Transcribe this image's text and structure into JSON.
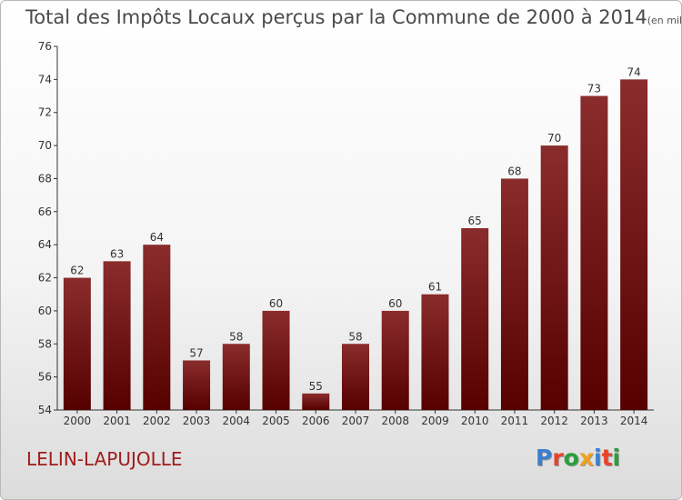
{
  "title": "Total des Impôts Locaux perçus par la Commune de 2000 à 2014",
  "subtitle": "(en milliers d'€)",
  "commune": "LELIN-LAPUJOLLE",
  "logo": {
    "letters": [
      "P",
      "r",
      "o",
      "x",
      "i",
      "t",
      "i"
    ],
    "colors": [
      "#3a7fd0",
      "#e8432a",
      "#2a9e3a",
      "#f0a020",
      "#3a7fd0",
      "#e8432a",
      "#2a9e3a"
    ]
  },
  "colors": {
    "bar_top": "#8a2c2c",
    "bar_bottom": "#560000",
    "axis": "#333333",
    "title": "#4a4a4a",
    "commune": "#a01c1c"
  },
  "chart_data": {
    "type": "bar",
    "title": "Total des Impôts Locaux perçus par la Commune de 2000 à 2014",
    "subtitle": "(en milliers d'€)",
    "xlabel": "",
    "ylabel": "",
    "categories": [
      "2000",
      "2001",
      "2002",
      "2003",
      "2004",
      "2005",
      "2006",
      "2007",
      "2008",
      "2009",
      "2010",
      "2011",
      "2012",
      "2013",
      "2014"
    ],
    "values": [
      62,
      63,
      64,
      57,
      58,
      60,
      55,
      58,
      60,
      61,
      65,
      68,
      70,
      73,
      74
    ],
    "ylim": [
      54,
      76
    ],
    "yticks": [
      54,
      56,
      58,
      60,
      62,
      64,
      66,
      68,
      70,
      72,
      74,
      76
    ],
    "grid": false,
    "legend": "none"
  }
}
